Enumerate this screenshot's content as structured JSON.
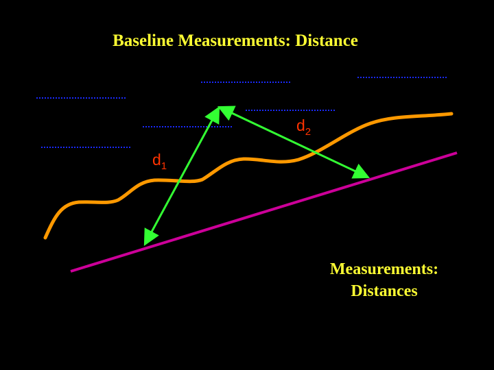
{
  "slide": {
    "title": "Baseline Measurements: Distance",
    "caption_line1": "Measurements:",
    "caption_line2": "Distances"
  },
  "labels": {
    "d1_main": "d",
    "d1_sub": "1",
    "d2_main": "d",
    "d2_sub": "2"
  },
  "colors": {
    "background": "#000000",
    "title_text": "#ffff33",
    "label_text": "#ff3300",
    "baseline": "#cc0099",
    "curve": "#ff9900",
    "arrows": "#33ff33",
    "dotted_lines": "#1a2aff"
  }
}
